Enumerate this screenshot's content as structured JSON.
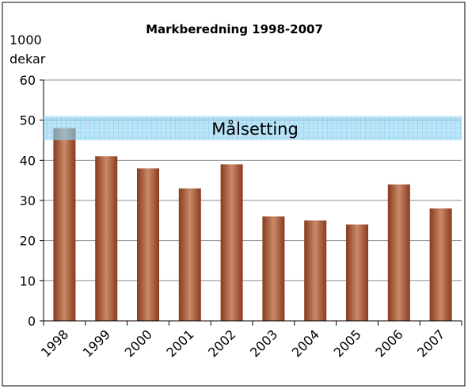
{
  "chart_data": {
    "type": "bar",
    "title": "Markberedning 1998-2007",
    "y_label": [
      "1000",
      "dekar"
    ],
    "categories": [
      "1998",
      "1999",
      "2000",
      "2001",
      "2002",
      "2003",
      "2004",
      "2005",
      "2006",
      "2007"
    ],
    "values": [
      48,
      41,
      38,
      33,
      39,
      26,
      25,
      24,
      34,
      28
    ],
    "color": "#a0462a",
    "ylim": [
      0,
      60
    ],
    "yticks": [
      0,
      10,
      20,
      30,
      40,
      50,
      60
    ],
    "grid": true,
    "annotation": {
      "text": "Målsetting",
      "range": [
        45,
        51
      ],
      "color": "#8fd3f4"
    }
  }
}
